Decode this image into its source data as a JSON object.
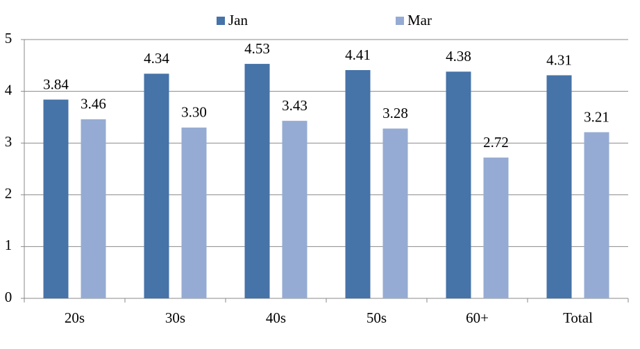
{
  "chart_data": {
    "type": "bar",
    "categories": [
      "20s",
      "30s",
      "40s",
      "50s",
      "60+",
      "Total"
    ],
    "series": [
      {
        "name": "Jan",
        "color": "#4673a8",
        "values": [
          3.84,
          4.34,
          4.53,
          4.41,
          4.38,
          4.31
        ],
        "value_labels": [
          "3.84",
          "4.34",
          "4.53",
          "4.41",
          "4.38",
          "4.31"
        ]
      },
      {
        "name": "Mar",
        "color": "#95abd3",
        "values": [
          3.46,
          3.3,
          3.43,
          3.28,
          2.72,
          3.21
        ],
        "value_labels": [
          "3.46",
          "3.30",
          "3.43",
          "3.28",
          "2.72",
          "3.21"
        ]
      }
    ],
    "ylim": [
      0,
      5
    ],
    "yticks": [
      0,
      1,
      2,
      3,
      4,
      5
    ],
    "grid": true,
    "legend": "top"
  }
}
